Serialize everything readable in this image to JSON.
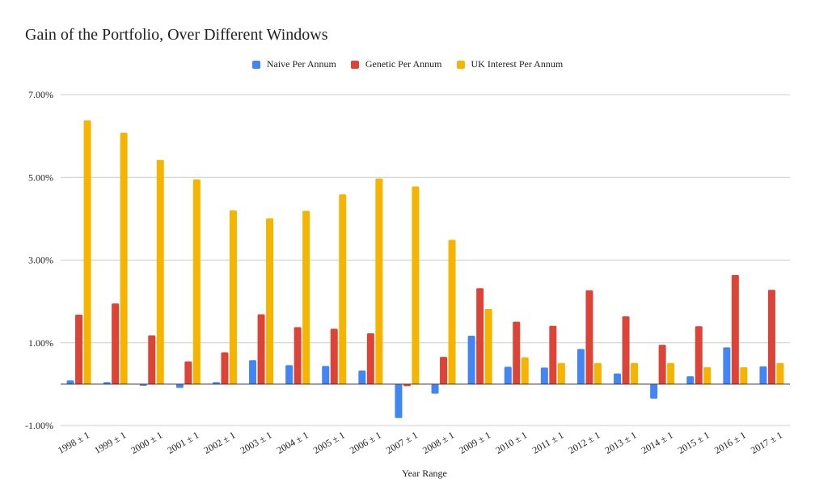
{
  "chart_data": {
    "type": "bar",
    "title": "Gain of the Portfolio, Over Different Windows",
    "xlabel": "Year Range",
    "ylabel": "",
    "ylim": [
      -0.01,
      0.07
    ],
    "yticks": [
      "-1.00%",
      "1.00%",
      "3.00%",
      "5.00%",
      "7.00%"
    ],
    "ytick_values": [
      -0.01,
      0.01,
      0.03,
      0.05,
      0.07
    ],
    "grid": true,
    "legend_position": "top",
    "categories": [
      "1998 ± 1",
      "1999 ± 1",
      "2000 ± 1",
      "2001 ± 1",
      "2002 ± 1",
      "2003 ± 1",
      "2004 ± 1",
      "2005 ± 1",
      "2006 ± 1",
      "2007 ± 1",
      "2008 ± 1",
      "2009 ± 1",
      "2010 ± 1",
      "2011 ± 1",
      "2012 ± 1",
      "2013 ± 1",
      "2014 ± 1",
      "2015 ± 1",
      "2016 ± 1",
      "2017 ± 1"
    ],
    "series": [
      {
        "name": "Naive Per Annum",
        "color": "#4285f4",
        "values": [
          0.0009,
          0.0005,
          -0.0004,
          -0.0009,
          0.0005,
          0.0058,
          0.0046,
          0.0044,
          0.0033,
          -0.0082,
          -0.0023,
          0.0117,
          0.0042,
          0.004,
          0.0085,
          0.0026,
          -0.0035,
          0.0019,
          0.0089,
          0.0043
        ]
      },
      {
        "name": "Genetic Per Annum",
        "color": "#db4437",
        "values": [
          0.0168,
          0.0195,
          0.0118,
          0.0055,
          0.0077,
          0.0169,
          0.0138,
          0.0134,
          0.0123,
          -0.0005,
          0.0066,
          0.0232,
          0.0151,
          0.0141,
          0.0227,
          0.0164,
          0.0095,
          0.014,
          0.0264,
          0.0228
        ]
      },
      {
        "name": "UK Interest Per Annum",
        "color": "#f4b400",
        "values": [
          0.0638,
          0.0608,
          0.0542,
          0.0495,
          0.042,
          0.0401,
          0.0419,
          0.0459,
          0.0497,
          0.0478,
          0.0349,
          0.0182,
          0.0065,
          0.0051,
          0.0051,
          0.0051,
          0.0051,
          0.0041,
          0.0041,
          0.0051
        ]
      }
    ]
  }
}
